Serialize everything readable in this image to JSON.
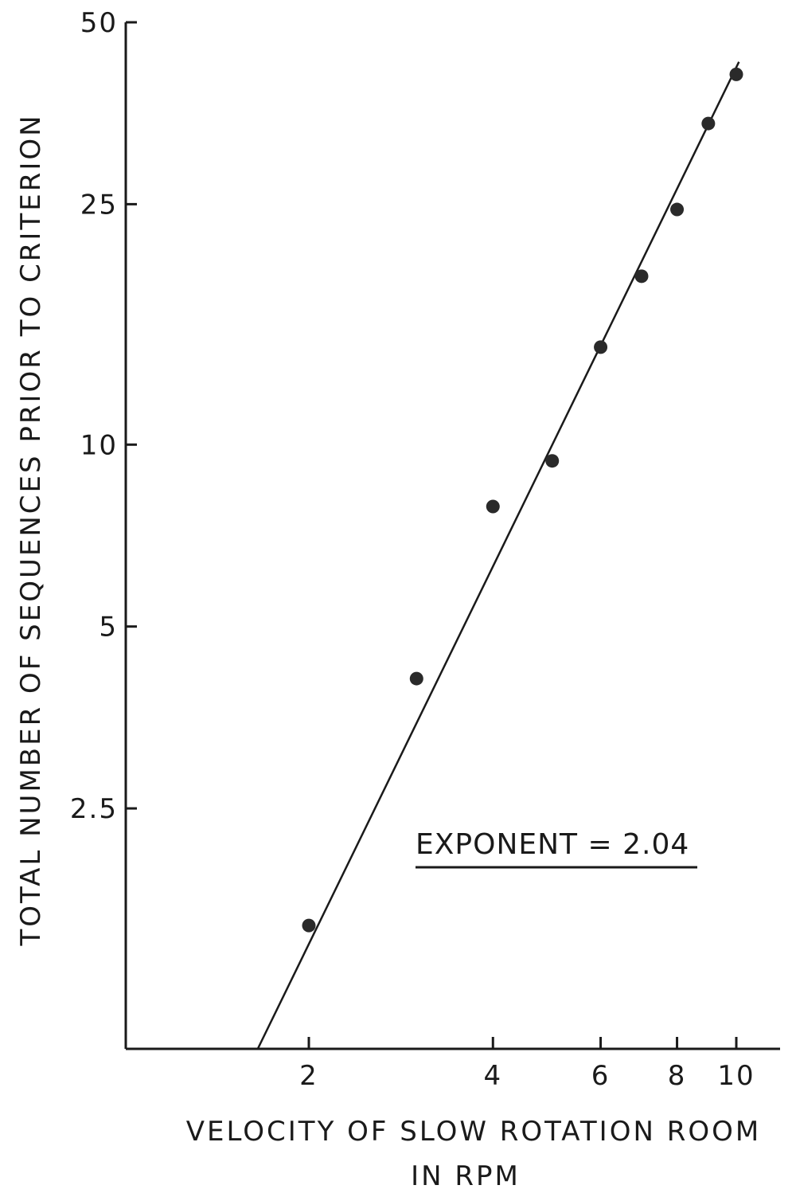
{
  "chart_data": {
    "type": "scatter",
    "scale": {
      "x": "log",
      "y": "log"
    },
    "xlim": [
      1.5,
      12.5
    ],
    "ylim": [
      1,
      50
    ],
    "xlabel_line1": "VELOCITY OF SLOW ROTATION ROOM",
    "xlabel_line2": "IN RPM",
    "ylabel": "TOTAL NUMBER OF SEQUENCES PRIOR TO CRITERION",
    "x_ticks": [
      {
        "value": 2,
        "label": "2"
      },
      {
        "value": 4,
        "label": "4"
      },
      {
        "value": 6,
        "label": "6"
      },
      {
        "value": 8,
        "label": "8"
      },
      {
        "value": 10,
        "label": "10"
      }
    ],
    "y_ticks": [
      {
        "value": 2.5,
        "label": "2.5"
      },
      {
        "value": 5,
        "label": "5"
      },
      {
        "value": 10,
        "label": "10"
      },
      {
        "value": 25,
        "label": "25"
      },
      {
        "value": 50,
        "label": "50"
      }
    ],
    "points": [
      {
        "x": 2,
        "y": 1.6
      },
      {
        "x": 3,
        "y": 4.1
      },
      {
        "x": 4,
        "y": 7.9
      },
      {
        "x": 5,
        "y": 9.4
      },
      {
        "x": 6,
        "y": 14.5
      },
      {
        "x": 7,
        "y": 19
      },
      {
        "x": 8,
        "y": 24.5
      },
      {
        "x": 9,
        "y": 34
      },
      {
        "x": 10,
        "y": 41
      }
    ],
    "fit_line": {
      "x_start": 1.65,
      "y_start": 1.0,
      "x_end": 10.1,
      "y_end": 43
    },
    "annotation": "EXPONENT = 2.04",
    "grid": false,
    "legend": "none"
  }
}
